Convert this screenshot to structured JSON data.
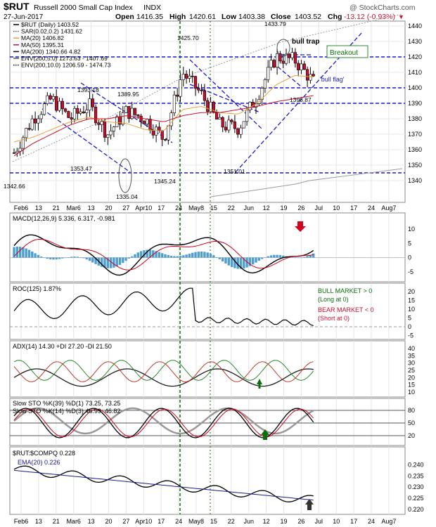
{
  "header": {
    "ticker": "$RUT",
    "name": "Russell 2000 Small Cap Index",
    "exchange": "INDX",
    "watermark": "@ StockCharts.com",
    "date": "27-Jun-2017",
    "open_label": "Open",
    "open": "1416.35",
    "high_label": "High",
    "high": "1420.61",
    "low_label": "Low",
    "low": "1403.38",
    "close_label": "Close",
    "close": "1403.52",
    "chg_label": "Chg",
    "chg": "-13.12 (-0.93%)"
  },
  "colors": {
    "up_candle": "#ffffff",
    "down_candle": "#c8102e",
    "blue": "#1a1acc",
    "green": "#0a6e0a",
    "red": "#d0021b",
    "orange": "#e8a33a",
    "gray": "#9a9a9a",
    "hist": "#4f9ed0",
    "adx": "#1a1a1a",
    "dip": "#2c8a2c",
    "dim": "#c0392b"
  },
  "main_panel": {
    "legend": [
      {
        "text": "$RUT (Daily) 1403.52",
        "color": "#000000",
        "icon": "candle-icon"
      },
      {
        "text": "SAR(0.02,0.2) 1431.62",
        "color": "#555555",
        "icon": "dots-icon"
      },
      {
        "text": "MA(20) 1406.82",
        "color": "#e8a33a",
        "icon": "line-icon"
      },
      {
        "text": "MA(50) 1395.31",
        "color": "#c8102e",
        "icon": "line-icon"
      },
      {
        "text": "MA(200) 1340.66 4.82",
        "color": "#000000",
        "icon": "line-icon"
      },
      {
        "text": "ENV(200,5.0) 1273.63 - 1407.69",
        "color": "#555555",
        "icon": "line-icon"
      },
      {
        "text": "ENV(200,10.0) 1206.59 - 1474.73",
        "color": "#000000",
        "icon": "dots-icon"
      }
    ],
    "y_ticks": [
      1340,
      1350,
      1360,
      1370,
      1380,
      1390,
      1400,
      1410,
      1420,
      1430,
      1440
    ],
    "annotations": {
      "bull_trap": "bull trap",
      "breakout": "Breakout",
      "bull_flag": "'bull flag'"
    },
    "price_labels": [
      "1425.70",
      "1433.79",
      "1393.18",
      "1389.95",
      "1396.87",
      "1353.47",
      "1345.24",
      "1351.01",
      "1342.66",
      "1335.04"
    ],
    "horizontal_levels": [
      1420,
      1400,
      1390,
      1345
    ],
    "level_labels": [
      {
        "value": 1425.7,
        "text": "1425.70"
      },
      {
        "value": 1433.79,
        "text": "1433.79"
      },
      {
        "value": 1393.18,
        "text": "1393.18"
      },
      {
        "value": 1389.95,
        "text": "1389.95"
      },
      {
        "value": 1396.87,
        "text": "1396.87"
      },
      {
        "value": 1353.47,
        "text": "1353.47"
      },
      {
        "value": 1345.24,
        "text": "1345.24"
      },
      {
        "value": 1351.01,
        "text": "1351.01"
      },
      {
        "value": 1342.66,
        "text": "1342.66"
      },
      {
        "value": 1335.04,
        "text": "1335.04"
      }
    ]
  },
  "macd_panel": {
    "label": "MACD(12,26,9) 5.336, 6.317, -0.981",
    "y_ticks": [
      -5,
      0,
      5,
      10
    ]
  },
  "roc_panel": {
    "label": "ROC(125) 1.87%",
    "y_ticks": [
      -5,
      0,
      5,
      10,
      15,
      20
    ],
    "notes": [
      "BULL MARKET > 0",
      "(Long at 0)",
      "BEAR MARKET < 0",
      "(Short at 0)"
    ]
  },
  "adx_panel": {
    "label": "ADX(14) 14.30 +DI 27.20 -DI 21.50",
    "y_ticks": [
      10,
      15,
      20,
      25,
      30,
      35,
      40
    ]
  },
  "sto_panel": {
    "label1": "Slow STO %K(39) %D(1) 73.25, 73.25",
    "label2": "Slow STO %K(14) %D(3) 46.99, 46.82",
    "y_ticks": [
      20,
      50,
      80
    ]
  },
  "ratio_panel": {
    "label": "$RUT:$COMPQ 0.228",
    "ema_label": "EMA(20) 0.226",
    "y_ticks": [
      "0.220",
      "0.225",
      "0.230",
      "0.235",
      "0.240"
    ]
  },
  "x_axis": {
    "labels": [
      "Feb6",
      "13",
      "21",
      "Mar6",
      "13",
      "20",
      "27",
      "Apr10",
      "17",
      "24",
      "May8",
      "15",
      "22",
      "Jun",
      "12",
      "19",
      "26",
      "Jul",
      "10",
      "17",
      "24",
      "Aug7"
    ]
  },
  "chart_data": {
    "type": "line",
    "title": "$RUT Russell 2000 Small Cap Index INDX",
    "x": [
      "2017-02-06",
      "2017-02-13",
      "2017-02-21",
      "2017-03-06",
      "2017-03-13",
      "2017-03-20",
      "2017-03-27",
      "2017-04-10",
      "2017-04-17",
      "2017-04-24",
      "2017-05-08",
      "2017-05-15",
      "2017-05-22",
      "2017-06-05",
      "2017-06-12",
      "2017-06-19",
      "2017-06-26"
    ],
    "ylim": [
      1332,
      1444
    ],
    "series": [
      {
        "name": "$RUT (Daily)",
        "values": [
          1358,
          1380,
          1393,
          1380,
          1389,
          1370,
          1385,
          1380,
          1367,
          1410,
          1396,
          1376,
          1374,
          1395,
          1420,
          1418,
          1404
        ]
      },
      {
        "name": "MA(20)",
        "values": [
          1365,
          1368,
          1373,
          1378,
          1381,
          1378,
          1377,
          1373,
          1372,
          1386,
          1388,
          1384,
          1383,
          1390,
          1402,
          1408,
          1407
        ]
      },
      {
        "name": "MA(50)",
        "values": [
          1356,
          1364,
          1370,
          1376,
          1380,
          1380,
          1382,
          1380,
          1378,
          1382,
          1384,
          1384,
          1386,
          1388,
          1391,
          1393,
          1395
        ]
      }
    ]
  }
}
